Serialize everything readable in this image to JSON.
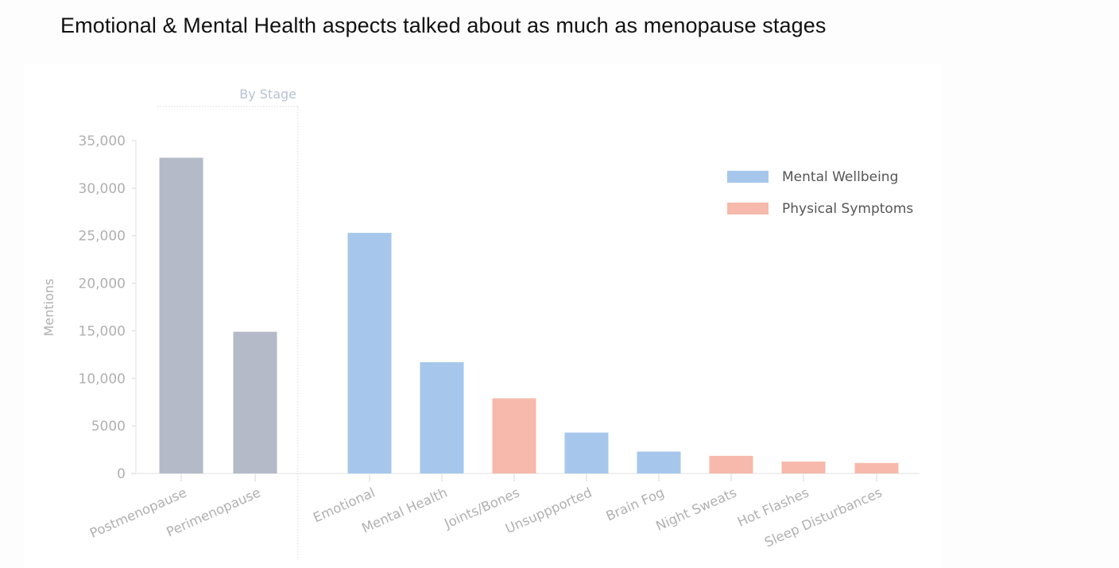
{
  "subtitle": "Emotional & Mental Health aspects talked about as much as menopause stages",
  "colors": {
    "stage": "#b4bac7",
    "mental": "#a6c7eb",
    "physical": "#f6b9ab",
    "axis_text": "#b0b0b0",
    "legend_text": "#555555",
    "group_label": "#b8c2d3"
  },
  "chart_data": {
    "type": "bar",
    "title": "",
    "xlabel": "",
    "ylabel": "Mentions",
    "ylim": [
      0,
      35000
    ],
    "yticks": [
      0,
      5000,
      10000,
      15000,
      20000,
      25000,
      30000,
      35000
    ],
    "ytick_labels": [
      "0",
      "5000",
      "10,000",
      "15,000",
      "20,000",
      "25,000",
      "30,000",
      "35,000"
    ],
    "grid": false,
    "group_annotation": "By Stage",
    "categories": [
      "Postmenopause",
      "Perimenopause",
      "Emotional",
      "Mental Health",
      "Joints/Bones",
      "Unsuppported",
      "Brain Fog",
      "Night Sweats",
      "Hot Flashes",
      "Sleep Disturbances"
    ],
    "values": [
      33200,
      14900,
      25300,
      11700,
      7900,
      4300,
      2300,
      1850,
      1250,
      1100
    ],
    "groups": [
      "stage",
      "stage",
      "mental",
      "mental",
      "physical",
      "mental",
      "mental",
      "physical",
      "physical",
      "physical"
    ],
    "legend": {
      "placement": "top-right",
      "entries": [
        {
          "label": "Mental Wellbeing",
          "group": "mental"
        },
        {
          "label": "Physical Symptoms",
          "group": "physical"
        }
      ]
    }
  }
}
